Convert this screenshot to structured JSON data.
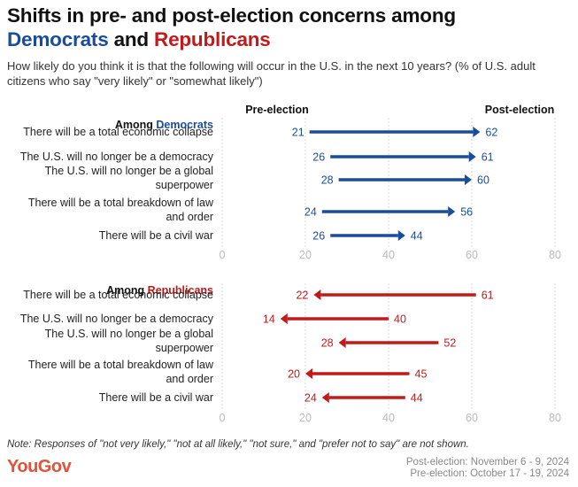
{
  "title": {
    "line1": "Shifts in pre- and post-election concerns among",
    "democrats": "Democrats",
    "and": " and ",
    "republicans": "Republicans"
  },
  "subtitle": "How likely do you think it is that the following will occur in the U.S. in the next 10 years? (% of U.S. adult citizens who say \"very likely\" or \"somewhat likely\")",
  "header": {
    "pre": "Pre-election",
    "post": "Post-election"
  },
  "note": "Note: Responses of \"not very likely,\" \"not at all likely,\" \"not sure,\" and \"prefer not to say\" are not shown.",
  "logo": "YouGov",
  "dates": {
    "post": "Post-election: November 6 - 9, 2024",
    "pre": "Pre-election: October 17 - 19, 2024"
  },
  "colors": {
    "democrats": "#1a4c9c",
    "republicans": "#c21a1a",
    "grid": "#d9d9d9",
    "axis_text": "#bbbbbb"
  },
  "chart_data": [
    {
      "type": "arrow-dot",
      "group_label_prefix": "Among ",
      "group": "Democrats",
      "color": "#1a4c9c",
      "categories": [
        [
          "There will be a total economic collapse"
        ],
        [
          "The U.S. will no longer be a democracy"
        ],
        [
          "The U.S. will no longer be a global",
          "superpower"
        ],
        [
          "There will be a total breakdown of law",
          "and order"
        ],
        [
          "There will be a civil war"
        ]
      ],
      "series": [
        {
          "name": "Pre-election",
          "values": [
            21,
            26,
            28,
            24,
            26
          ]
        },
        {
          "name": "Post-election",
          "values": [
            62,
            61,
            60,
            56,
            44
          ]
        }
      ],
      "xlim": [
        0,
        80
      ],
      "xticks": [
        0,
        20,
        40,
        60,
        80
      ],
      "grid": true
    },
    {
      "type": "arrow-dot",
      "group_label_prefix": "Among ",
      "group": "Republicans",
      "color": "#c21a1a",
      "categories": [
        [
          "There will be a total economic collapse"
        ],
        [
          "The U.S. will no longer be a democracy"
        ],
        [
          "The U.S. will no longer be a global",
          "superpower"
        ],
        [
          "There will be a total breakdown of law",
          "and order"
        ],
        [
          "There will be a civil war"
        ]
      ],
      "series": [
        {
          "name": "Pre-election",
          "values": [
            61,
            40,
            52,
            45,
            44
          ]
        },
        {
          "name": "Post-election",
          "values": [
            22,
            14,
            28,
            20,
            24
          ]
        }
      ],
      "xlim": [
        0,
        80
      ],
      "xticks": [
        0,
        20,
        40,
        60,
        80
      ],
      "grid": true
    }
  ]
}
